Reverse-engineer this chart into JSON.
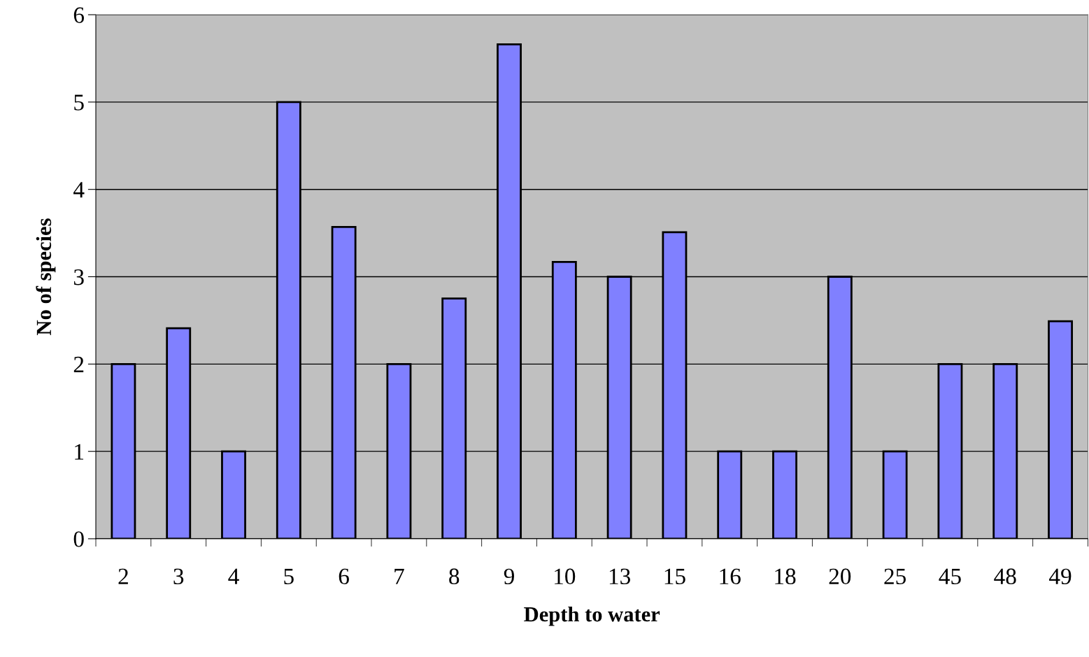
{
  "chart_data": {
    "type": "bar",
    "xlabel": "Depth to water",
    "ylabel": "No of species",
    "categories": [
      "2",
      "3",
      "4",
      "5",
      "6",
      "7",
      "8",
      "9",
      "10",
      "13",
      "15",
      "16",
      "18",
      "20",
      "25",
      "45",
      "48",
      "49"
    ],
    "values": [
      2,
      2.41,
      1,
      5,
      3.57,
      2,
      2.75,
      5.66,
      3.17,
      3,
      3.51,
      1,
      1,
      3,
      1,
      2,
      2,
      2.49
    ],
    "color": "#8080ff",
    "ylim": [
      0,
      6
    ],
    "yticks": [
      0,
      1,
      2,
      3,
      4,
      5,
      6
    ],
    "grid": "y"
  }
}
